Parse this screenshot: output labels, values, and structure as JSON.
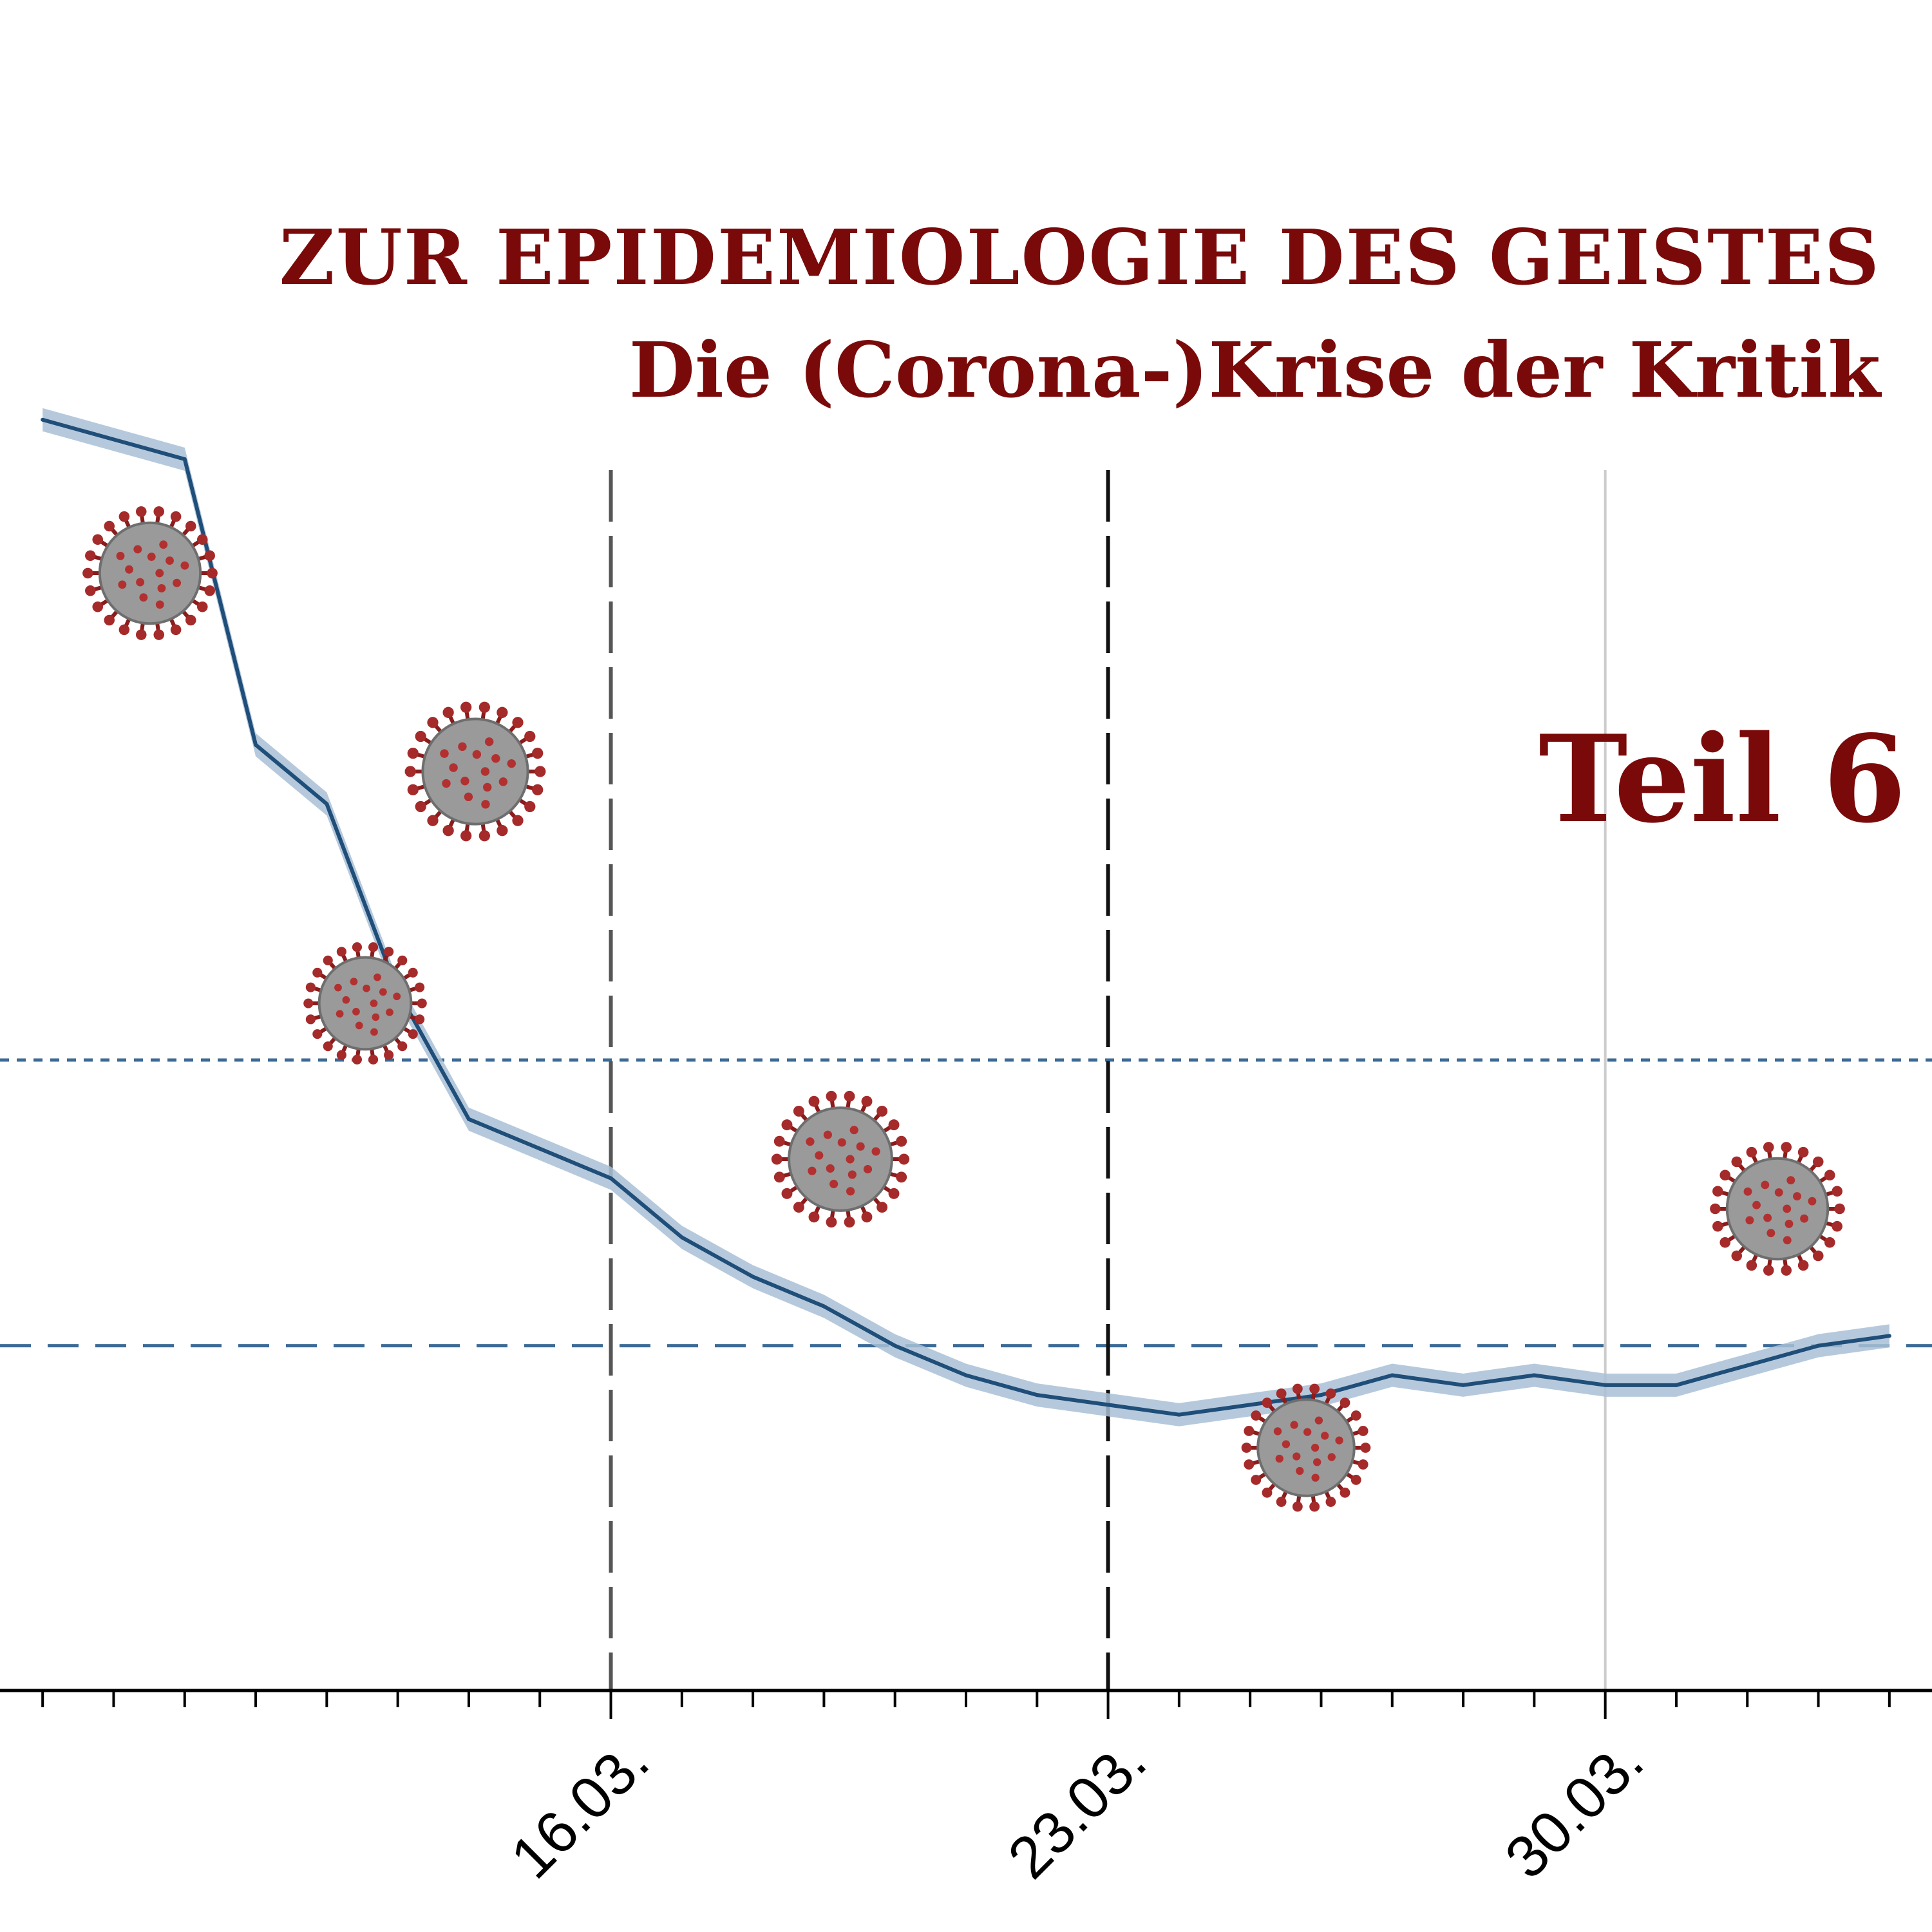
{
  "header": {
    "title": "ZUR EPIDEMIOLOGIE DES GEISTES",
    "subtitle": "Die (Corona-)Krise der Kritik",
    "part": "Teil 6"
  },
  "chart_data": {
    "type": "line",
    "x_unit": "day (March)",
    "x": [
      8,
      9,
      10,
      11,
      12,
      13,
      14,
      15,
      16,
      17,
      18,
      19,
      20,
      21,
      22,
      23,
      24,
      25,
      26,
      27,
      28,
      29,
      30,
      31,
      32,
      33,
      34
    ],
    "series": [
      {
        "values": [
          0.94,
          0.92,
          0.9,
          0.61,
          0.55,
          0.36,
          0.23,
          0.2,
          0.17,
          0.11,
          0.07,
          0.04,
          0.0,
          -0.03,
          -0.05,
          -0.06,
          -0.07,
          -0.06,
          -0.05,
          -0.03,
          -0.04,
          -0.03,
          -0.04,
          -0.04,
          -0.02,
          0.0,
          0.01
        ],
        "color": "#1f4e79",
        "band_color": "#a9bfd6"
      }
    ],
    "xlim": [
      7.4,
      34.6
    ],
    "ylim": [
      -0.35,
      1.0
    ],
    "x_ticks": [
      {
        "x": 16,
        "label": "16.03."
      },
      {
        "x": 23,
        "label": "23.03."
      },
      {
        "x": 30,
        "label": "30.03."
      }
    ],
    "vlines": [
      {
        "x": 16,
        "style": "dashed",
        "color": "#555555"
      },
      {
        "x": 23,
        "style": "dashed",
        "color": "#111111"
      },
      {
        "x": 30,
        "style": "solid",
        "color": "#cccccc"
      }
    ],
    "hlines": [
      {
        "y": 0.29,
        "style": "dotted",
        "color": "#3b6a96"
      },
      {
        "y": 0.0,
        "style": "dashed",
        "color": "#3b6a96"
      }
    ],
    "decorations": [
      "virus-icon",
      "virus-icon",
      "virus-icon",
      "virus-icon",
      "virus-icon",
      "virus-icon",
      "virus-icon"
    ]
  }
}
